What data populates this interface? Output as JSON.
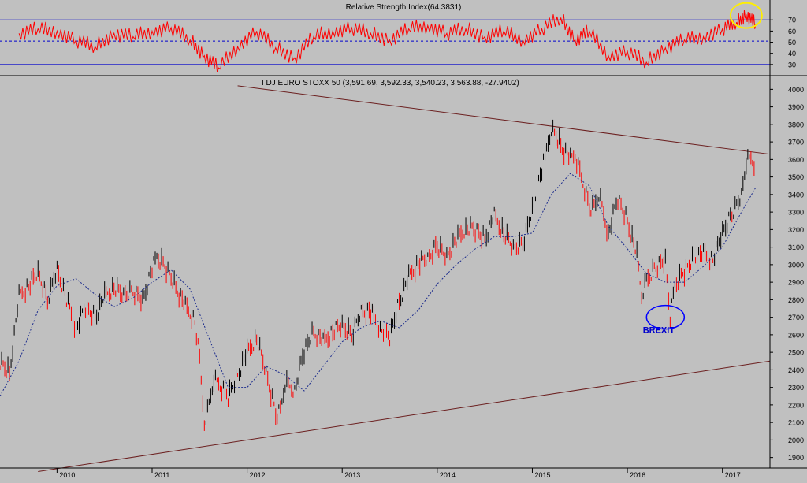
{
  "colors": {
    "background": "#c0c0c0",
    "rsi_line": "#ff0000",
    "rsi_bounds": "#0000cc",
    "rsi_mid": "#0000cc",
    "up_bar": "#000000",
    "down_bar": "#ff0000",
    "moving_average": "#1a2a8c",
    "trendline": "#6b1f1f",
    "highlight_circle_rsi": "#ffee00",
    "highlight_circle_brexit": "#0000ff",
    "annotation_text": "#0000cc"
  },
  "chart_data": [
    {
      "type": "line",
      "title": "Relative Strength Index(64.3831)",
      "ylim": [
        20,
        85
      ],
      "y_ticks": [
        70,
        60,
        50,
        40,
        30
      ],
      "reference_lines": [
        {
          "y": 70,
          "style": "solid"
        },
        {
          "y": 30,
          "style": "solid"
        },
        {
          "y": 51,
          "style": "dashed"
        }
      ],
      "x": [
        2009.6,
        2009.8,
        2010.0,
        2010.2,
        2010.4,
        2010.6,
        2010.8,
        2011.0,
        2011.2,
        2011.4,
        2011.55,
        2011.7,
        2011.9,
        2012.1,
        2012.3,
        2012.5,
        2012.7,
        2012.9,
        2013.1,
        2013.3,
        2013.5,
        2013.7,
        2013.9,
        2014.1,
        2014.3,
        2014.5,
        2014.7,
        2014.9,
        2015.1,
        2015.3,
        2015.45,
        2015.6,
        2015.8,
        2016.0,
        2016.2,
        2016.4,
        2016.6,
        2016.8,
        2017.0,
        2017.15,
        2017.25,
        2017.35
      ],
      "values": [
        58,
        62,
        60,
        52,
        46,
        58,
        55,
        60,
        63,
        52,
        38,
        27,
        46,
        60,
        45,
        36,
        55,
        60,
        63,
        58,
        52,
        62,
        65,
        58,
        62,
        55,
        60,
        52,
        62,
        72,
        52,
        60,
        38,
        42,
        32,
        45,
        52,
        55,
        62,
        68,
        75,
        66
      ],
      "highlight_circle": {
        "x": 2017.25,
        "y": 74
      }
    },
    {
      "type": "line",
      "title": "I DJ EURO STOXX 50 (3,591.69, 3,592.33, 3,540.23, 3,563.88, -27.9402)",
      "ylim": [
        1840,
        4060
      ],
      "y_ticks": [
        4000,
        3900,
        3800,
        3700,
        3600,
        3500,
        3400,
        3300,
        3200,
        3100,
        3000,
        2900,
        2800,
        2700,
        2600,
        2500,
        2400,
        2300,
        2200,
        2100,
        2000,
        1900
      ],
      "x_ticks": [
        "2010",
        "2011",
        "2012",
        "2013",
        "2014",
        "2015",
        "2016",
        "2017"
      ],
      "x_tick_values": [
        2010,
        2011,
        2012,
        2013,
        2014,
        2015,
        2016,
        2017
      ],
      "xlim": [
        2009.4,
        2017.5
      ],
      "series": [
        {
          "style": "price_bars",
          "x": [
            2009.4,
            2009.5,
            2009.6,
            2009.7,
            2009.8,
            2009.9,
            2010.0,
            2010.1,
            2010.2,
            2010.3,
            2010.4,
            2010.5,
            2010.6,
            2010.7,
            2010.8,
            2010.9,
            2011.0,
            2011.05,
            2011.15,
            2011.25,
            2011.35,
            2011.45,
            2011.5,
            2011.55,
            2011.6,
            2011.65,
            2011.7,
            2011.8,
            2011.9,
            2012.0,
            2012.1,
            2012.2,
            2012.3,
            2012.35,
            2012.4,
            2012.5,
            2012.6,
            2012.7,
            2012.8,
            2012.9,
            2013.0,
            2013.1,
            2013.2,
            2013.3,
            2013.4,
            2013.5,
            2013.6,
            2013.7,
            2013.8,
            2013.9,
            2014.0,
            2014.1,
            2014.2,
            2014.3,
            2014.4,
            2014.5,
            2014.6,
            2014.7,
            2014.8,
            2014.9,
            2015.0,
            2015.1,
            2015.15,
            2015.2,
            2015.3,
            2015.4,
            2015.45,
            2015.5,
            2015.6,
            2015.65,
            2015.7,
            2015.8,
            2015.9,
            2016.0,
            2016.1,
            2016.15,
            2016.2,
            2016.3,
            2016.4,
            2016.45,
            2016.5,
            2016.6,
            2016.7,
            2016.8,
            2016.9,
            2017.0,
            2017.1,
            2017.2,
            2017.25,
            2017.3,
            2017.35
          ],
          "values": [
            2450,
            2380,
            2820,
            2880,
            2950,
            2800,
            2980,
            2800,
            2640,
            2760,
            2700,
            2820,
            2870,
            2820,
            2850,
            2800,
            2980,
            3040,
            2980,
            2870,
            2760,
            2680,
            2450,
            2100,
            2200,
            2350,
            2310,
            2250,
            2370,
            2500,
            2580,
            2380,
            2150,
            2170,
            2320,
            2290,
            2510,
            2620,
            2560,
            2620,
            2650,
            2600,
            2740,
            2730,
            2640,
            2590,
            2790,
            2930,
            3010,
            3030,
            3110,
            3050,
            3140,
            3210,
            3200,
            3150,
            3280,
            3180,
            3090,
            3120,
            3320,
            3540,
            3660,
            3780,
            3680,
            3600,
            3620,
            3520,
            3330,
            3330,
            3400,
            3180,
            3380,
            3250,
            3050,
            2820,
            2900,
            2990,
            3030,
            2700,
            2880,
            2960,
            3040,
            3060,
            3030,
            3180,
            3290,
            3400,
            3590,
            3600,
            3564
          ]
        },
        {
          "style": "moving_average",
          "x": [
            2009.4,
            2009.6,
            2009.8,
            2010.0,
            2010.2,
            2010.4,
            2010.6,
            2010.8,
            2011.0,
            2011.2,
            2011.4,
            2011.6,
            2011.8,
            2012.0,
            2012.2,
            2012.4,
            2012.6,
            2012.8,
            2013.0,
            2013.2,
            2013.4,
            2013.6,
            2013.8,
            2014.0,
            2014.2,
            2014.4,
            2014.6,
            2014.8,
            2015.0,
            2015.2,
            2015.4,
            2015.6,
            2015.8,
            2016.0,
            2016.2,
            2016.4,
            2016.6,
            2016.8,
            2017.0,
            2017.2,
            2017.35
          ],
          "values": [
            2250,
            2450,
            2740,
            2880,
            2920,
            2830,
            2760,
            2810,
            2900,
            2970,
            2860,
            2580,
            2300,
            2300,
            2420,
            2370,
            2280,
            2420,
            2560,
            2640,
            2680,
            2640,
            2740,
            2890,
            3000,
            3090,
            3160,
            3160,
            3180,
            3400,
            3520,
            3450,
            3220,
            3090,
            2950,
            2900,
            2900,
            2990,
            3100,
            3300,
            3440
          ]
        }
      ],
      "trendlines": [
        {
          "from": {
            "x": 2011.9,
            "y": 4020
          },
          "to": {
            "x": 2017.5,
            "y": 3630
          }
        },
        {
          "from": {
            "x": 2009.8,
            "y": 1820
          },
          "to": {
            "x": 2017.5,
            "y": 2450
          }
        }
      ],
      "annotations": [
        {
          "text": "BREXIT",
          "x": 2016.33,
          "y": 2610
        },
        {
          "circle_at": {
            "x": 2016.4,
            "y": 2700
          }
        }
      ]
    }
  ]
}
